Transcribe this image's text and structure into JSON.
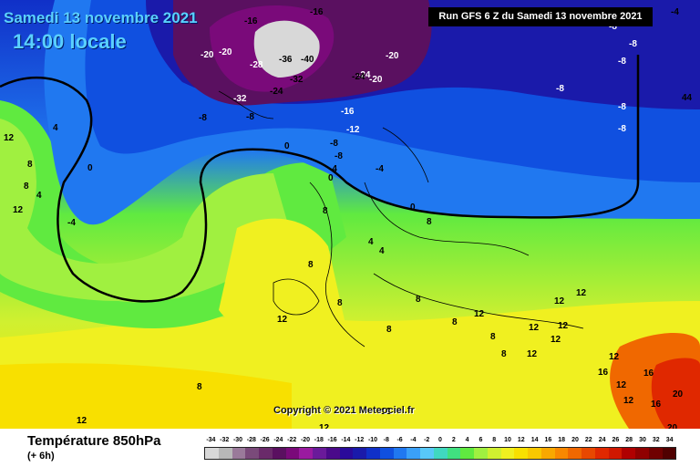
{
  "header": {
    "date_title": "Samedi 13 novembre 2021",
    "time_title": "14:00 locale",
    "run_info": "Run GFS 6 Z du Samedi 13 novembre 2021"
  },
  "copyright": "Copyright © 2021 Meteociel.fr",
  "legend": {
    "parameter": "Température 850hPa",
    "offset": "(+ 6h)",
    "scale_values": [
      "-34",
      "-32",
      "-30",
      "-28",
      "-26",
      "-24",
      "-22",
      "-20",
      "-18",
      "-16",
      "-14",
      "-12",
      "-10",
      "-8",
      "-6",
      "-4",
      "-2",
      "0",
      "2",
      "4",
      "6",
      "8",
      "10",
      "12",
      "14",
      "16",
      "18",
      "20",
      "22",
      "24",
      "26",
      "28",
      "30",
      "32",
      "34"
    ],
    "scale_colors": [
      "#d8d8d8",
      "#b8b8b8",
      "#9a7a9a",
      "#7a4a7a",
      "#6a2a6a",
      "#5a1060",
      "#7a0a7a",
      "#9a1aa0",
      "#6a1a9a",
      "#4a0a8a",
      "#2a0a9a",
      "#1a1aaa",
      "#1030c8",
      "#1050e0",
      "#2078f0",
      "#3aa0f8",
      "#58c8f8",
      "#40d8c0",
      "#40e080",
      "#60ea40",
      "#a0f040",
      "#d0f030",
      "#f0f020",
      "#f8e000",
      "#f8c800",
      "#f8a800",
      "#f88800",
      "#f06800",
      "#e84800",
      "#e02800",
      "#d01800",
      "#b00000",
      "#900000",
      "#700000",
      "#500000"
    ]
  },
  "map_labels": [
    {
      "text": "-16",
      "color": "dark"
    },
    {
      "text": "-16",
      "color": "dark"
    },
    {
      "text": "-20",
      "color": "light"
    },
    {
      "text": "-20",
      "color": "light"
    },
    {
      "text": "-28",
      "color": "light"
    },
    {
      "text": "-36",
      "color": "dark"
    },
    {
      "text": "-40",
      "color": "dark"
    },
    {
      "text": "-32",
      "color": "dark"
    },
    {
      "text": "-32",
      "color": "light"
    },
    {
      "text": "-24",
      "color": "dark"
    },
    {
      "text": "-24",
      "color": "light"
    },
    {
      "text": "-20",
      "color": "light"
    },
    {
      "text": "-20",
      "color": "light"
    },
    {
      "text": "-24",
      "color": "dark"
    },
    {
      "text": "-16",
      "color": "light"
    },
    {
      "text": "-12",
      "color": "light"
    },
    {
      "text": "-8",
      "color": "dark"
    },
    {
      "text": "-8",
      "color": "dark"
    },
    {
      "text": "-8",
      "color": "dark"
    },
    {
      "text": "-8",
      "color": "dark"
    },
    {
      "text": "-4",
      "color": "dark"
    },
    {
      "text": "-4",
      "color": "dark"
    },
    {
      "text": "0",
      "color": "dark"
    },
    {
      "text": "0",
      "color": "dark"
    },
    {
      "text": "0",
      "color": "dark"
    },
    {
      "text": "-8",
      "color": "light"
    },
    {
      "text": "-8",
      "color": "light"
    },
    {
      "text": "-8",
      "color": "light"
    },
    {
      "text": "-8",
      "color": "light"
    },
    {
      "text": "-8",
      "color": "light"
    },
    {
      "text": "-8",
      "color": "light"
    },
    {
      "text": "-4",
      "color": "dark"
    },
    {
      "text": "44",
      "color": "dark"
    },
    {
      "text": "12",
      "color": "dark"
    },
    {
      "text": "8",
      "color": "dark"
    },
    {
      "text": "4",
      "color": "dark"
    },
    {
      "text": "0",
      "color": "dark"
    },
    {
      "text": "8",
      "color": "dark"
    },
    {
      "text": "4",
      "color": "dark"
    },
    {
      "text": "-4",
      "color": "dark"
    },
    {
      "text": "8",
      "color": "dark"
    },
    {
      "text": "4",
      "color": "dark"
    },
    {
      "text": "4",
      "color": "dark"
    },
    {
      "text": "8",
      "color": "dark"
    },
    {
      "text": "12",
      "color": "dark"
    },
    {
      "text": "8",
      "color": "dark"
    },
    {
      "text": "8",
      "color": "dark"
    },
    {
      "text": "8",
      "color": "dark"
    },
    {
      "text": "12",
      "color": "dark"
    },
    {
      "text": "12",
      "color": "dark"
    },
    {
      "text": "12",
      "color": "dark"
    },
    {
      "text": "8",
      "color": "dark"
    },
    {
      "text": "8",
      "color": "dark"
    },
    {
      "text": "12",
      "color": "dark"
    },
    {
      "text": "12",
      "color": "dark"
    },
    {
      "text": "12",
      "color": "dark"
    },
    {
      "text": "12",
      "color": "dark"
    },
    {
      "text": "16",
      "color": "dark"
    },
    {
      "text": "12",
      "color": "dark"
    },
    {
      "text": "16",
      "color": "dark"
    },
    {
      "text": "16",
      "color": "dark"
    },
    {
      "text": "20",
      "color": "dark"
    },
    {
      "text": "20",
      "color": "dark"
    },
    {
      "text": "12",
      "color": "dark"
    },
    {
      "text": "12",
      "color": "dark"
    },
    {
      "text": "8",
      "color": "dark"
    },
    {
      "text": "8",
      "color": "dark"
    },
    {
      "text": "12",
      "color": "dark"
    },
    {
      "text": "12",
      "color": "dark"
    },
    {
      "text": "12",
      "color": "dark"
    },
    {
      "text": "8",
      "color": "dark"
    },
    {
      "text": "12",
      "color": "dark"
    }
  ]
}
